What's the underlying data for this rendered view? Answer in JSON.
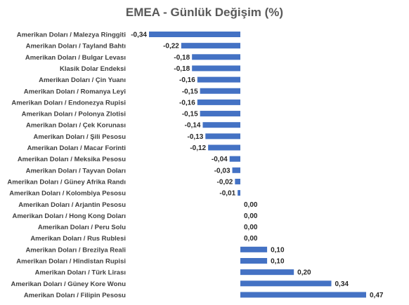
{
  "chart_data": {
    "type": "bar",
    "orientation": "horizontal",
    "title": "EMEA - Günlük Değişim (%)",
    "xlabel": "",
    "ylabel": "",
    "grid": false,
    "legend": "none",
    "bar_color": "#4472C4",
    "categories": [
      "Amerikan Doları / Malezya Ringgiti",
      "Amerikan Doları / Tayland Bahtı",
      "Amerikan Doları / Bulgar Levası",
      "Klasik Dolar Endeksi",
      "Amerikan Doları / Çin Yuanı",
      "Amerikan Doları / Romanya Leyi",
      "Amerikan Doları / Endonezya Rupisi",
      "Amerikan Doları / Polonya Zlotisi",
      "Amerikan Doları / Çek Korunası",
      "Amerikan Doları / Şili Pesosu",
      "Amerikan Doları / Macar Forinti",
      "Amerikan Doları / Meksika Pesosu",
      "Amerikan Doları / Tayvan Doları",
      "Amerikan Doları / Güney Afrika Randı",
      "Amerikan Doları / Kolombiya Pesosu",
      "Amerikan Doları / Arjantin Pesosu",
      "Amerikan Doları / Hong Kong Doları",
      "Amerikan Doları / Peru Solu",
      "Amerikan Doları / Rus Rublesi",
      "Amerikan Doları / Brezilya Reali",
      "Amerikan Doları / Hindistan Rupisi",
      "Amerikan Doları / Türk Lirası",
      "Amerikan Doları / Güney Kore Wonu",
      "Amerikan Doları / Filipin Pesosu"
    ],
    "values": [
      -0.34,
      -0.22,
      -0.18,
      -0.18,
      -0.16,
      -0.15,
      -0.16,
      -0.15,
      -0.14,
      -0.13,
      -0.12,
      -0.04,
      -0.03,
      -0.02,
      -0.01,
      0.0,
      0.0,
      0.0,
      0.0,
      0.1,
      0.1,
      0.2,
      0.34,
      0.47
    ],
    "value_labels": [
      "-0,34",
      "-0,22",
      "-0,18",
      "-0,18",
      "-0,16",
      "-0,15",
      "-0,16",
      "-0,15",
      "-0,14",
      "-0,13",
      "-0,12",
      "-0,04",
      "-0,03",
      "-0,02",
      "-0,01",
      "0,00",
      "0,00",
      "0,00",
      "0,00",
      "0,10",
      "0,10",
      "0,20",
      "0,34",
      "0,47"
    ],
    "xlim": [
      -0.34,
      0.47
    ]
  }
}
